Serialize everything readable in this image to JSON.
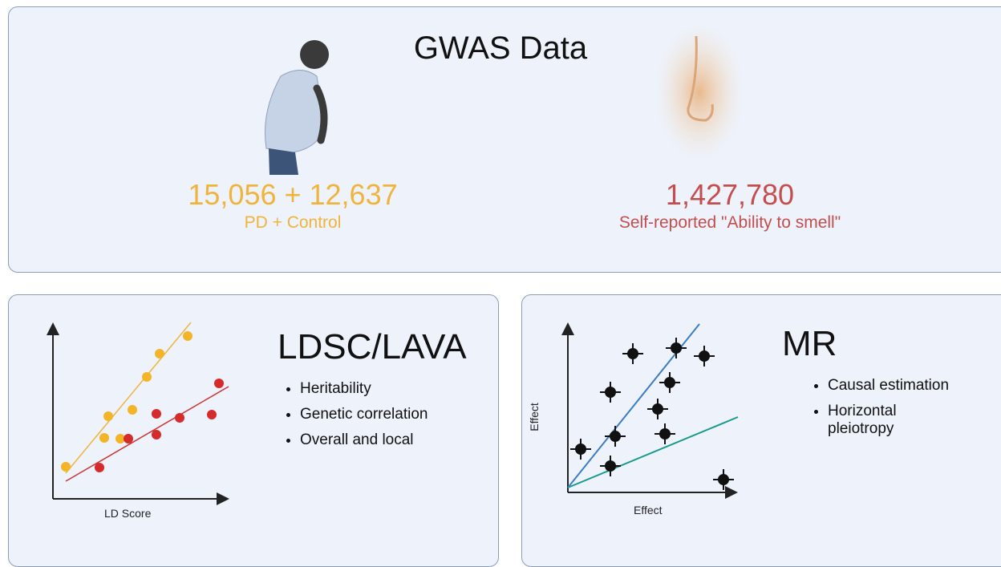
{
  "gwas": {
    "title": "GWAS Data",
    "pd": {
      "count": "15,056 + 12,637",
      "label": "PD + Control"
    },
    "smell": {
      "count": "1,427,780",
      "label": "Self-reported \"Ability to smell\""
    }
  },
  "ldsc": {
    "title": "LDSC/LAVA",
    "bullets": [
      "Heritability",
      "Genetic correlation",
      "Overall and local"
    ],
    "x_label": "LD Score"
  },
  "mr": {
    "title": "MR",
    "bullets": [
      "Causal estimation",
      "Horizontal pleiotropy"
    ],
    "x_label": "Effect",
    "y_label": "Effect"
  }
}
